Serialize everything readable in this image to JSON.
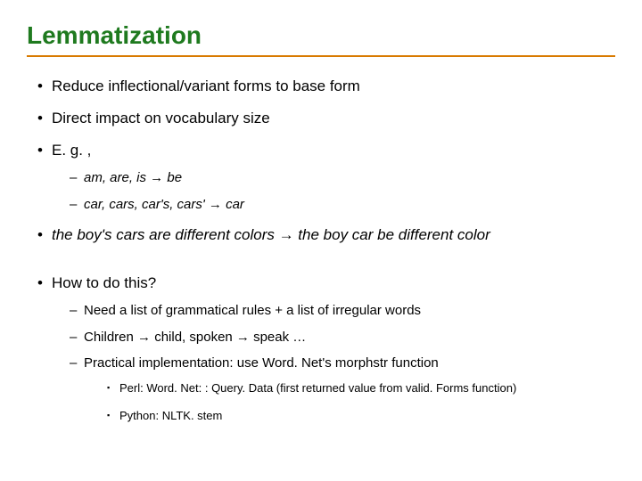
{
  "title": {
    "text": "Lemmatization",
    "color": "#1f7a1f",
    "fontsize": 28
  },
  "rule_color": "#d97a00",
  "text_color": "#000000",
  "body_fontsize_l1": 17,
  "body_fontsize_l2": 15,
  "body_fontsize_l3": 13,
  "arrow": "→",
  "bullets": {
    "b1": "Reduce inflectional/variant forms to base form",
    "b2": "Direct impact on vocabulary size",
    "b3": "E. g. ,",
    "b3a": "am, are, is → be",
    "b3b": "car, cars, car's, cars' → car",
    "b4": "the boy's cars are different colors → the boy car be different color",
    "b5": "How to do this?",
    "b5a": "Need a list of grammatical rules +  a list of irregular words",
    "b5b": "Children → child, spoken → speak …",
    "b5c": "Practical implementation: use Word. Net's morphstr function",
    "b5c1": "Perl: Word. Net: : Query. Data (first returned value from valid. Forms function)",
    "b5c2": "Python: NLTK. stem"
  }
}
